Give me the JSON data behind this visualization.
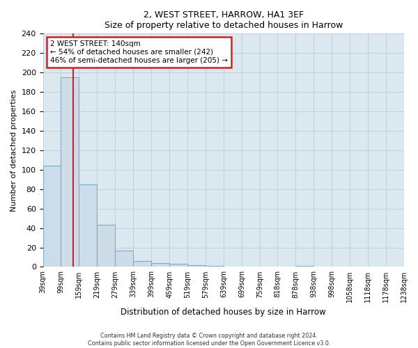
{
  "title": "2, WEST STREET, HARROW, HA1 3EF",
  "subtitle": "Size of property relative to detached houses in Harrow",
  "xlabel": "Distribution of detached houses by size in Harrow",
  "ylabel": "Number of detached properties",
  "bin_edges": [
    39,
    99,
    159,
    219,
    279,
    339,
    399,
    459,
    519,
    579,
    639,
    699,
    759,
    818,
    878,
    938,
    998,
    1058,
    1118,
    1178,
    1238
  ],
  "bin_labels": [
    "39sqm",
    "99sqm",
    "159sqm",
    "219sqm",
    "279sqm",
    "339sqm",
    "399sqm",
    "459sqm",
    "519sqm",
    "579sqm",
    "639sqm",
    "699sqm",
    "759sqm",
    "818sqm",
    "878sqm",
    "938sqm",
    "998sqm",
    "1058sqm",
    "1118sqm",
    "1178sqm",
    "1238sqm"
  ],
  "bar_heights": [
    104,
    195,
    85,
    43,
    17,
    6,
    4,
    3,
    2,
    1,
    0,
    0,
    0,
    0,
    1,
    0,
    0,
    0,
    0,
    0,
    1
  ],
  "bar_color": "#ccdce8",
  "bar_edge_color": "#7aabcc",
  "red_line_x": 140,
  "ylim": [
    0,
    240
  ],
  "yticks": [
    0,
    20,
    40,
    60,
    80,
    100,
    120,
    140,
    160,
    180,
    200,
    220,
    240
  ],
  "annotation_line1": "2 WEST STREET: 140sqm",
  "annotation_line2": "← 54% of detached houses are smaller (242)",
  "annotation_line3": "46% of semi-detached houses are larger (205) →",
  "annotation_box_facecolor": "#ffffff",
  "annotation_box_edgecolor": "#cc2222",
  "footer_line1": "Contains HM Land Registry data © Crown copyright and database right 2024.",
  "footer_line2": "Contains public sector information licensed under the Open Government Licence v3.0.",
  "plot_bg_color": "#dce8f0",
  "fig_bg_color": "#ffffff",
  "grid_color": "#b8ccd8"
}
